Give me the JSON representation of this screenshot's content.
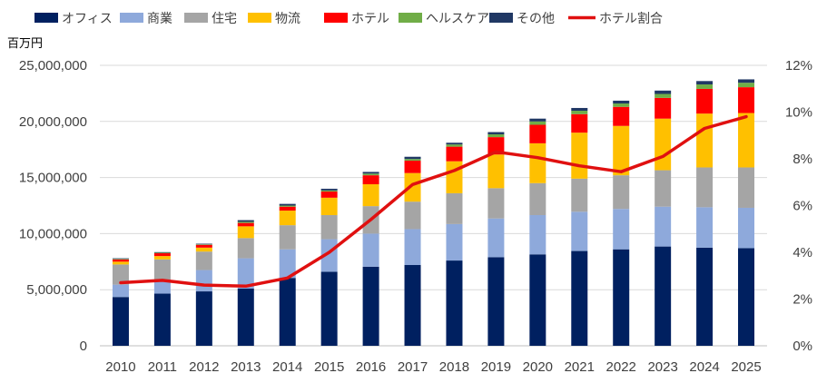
{
  "chart_data": {
    "type": "bar",
    "stacked": true,
    "y_unit_label": "百万円",
    "categories": [
      "2010",
      "2011",
      "2012",
      "2013",
      "2014",
      "2015",
      "2016",
      "2017",
      "2018",
      "2019",
      "2020",
      "2021",
      "2022",
      "2023",
      "2024",
      "2025"
    ],
    "series": [
      {
        "name": "オフィス",
        "color": "#002060",
        "values": [
          4350000,
          4650000,
          4850000,
          5100000,
          6050000,
          6600000,
          7050000,
          7200000,
          7600000,
          7900000,
          8150000,
          8450000,
          8600000,
          8850000,
          8750000,
          8700000
        ]
      },
      {
        "name": "商業",
        "color": "#8EA9DB",
        "values": [
          1100000,
          1200000,
          1900000,
          2700000,
          2550000,
          2900000,
          2950000,
          3200000,
          3250000,
          3450000,
          3500000,
          3500000,
          3600000,
          3550000,
          3600000,
          3600000
        ]
      },
      {
        "name": "住宅",
        "color": "#A5A5A5",
        "values": [
          1800000,
          1850000,
          1650000,
          1800000,
          2150000,
          2150000,
          2450000,
          2450000,
          2750000,
          2700000,
          2850000,
          2950000,
          3000000,
          3250000,
          3550000,
          3600000
        ]
      },
      {
        "name": "物流",
        "color": "#FFC000",
        "values": [
          250000,
          300000,
          350000,
          1050000,
          1300000,
          1550000,
          1950000,
          2550000,
          2850000,
          3000000,
          3550000,
          4100000,
          4400000,
          4600000,
          4800000,
          4850000
        ]
      },
      {
        "name": "ホテル",
        "color": "#FF0000",
        "values": [
          200000,
          250000,
          250000,
          300000,
          350000,
          550000,
          800000,
          1100000,
          1300000,
          1550000,
          1650000,
          1650000,
          1700000,
          1850000,
          2200000,
          2300000
        ]
      },
      {
        "name": "ヘルスケア",
        "color": "#70AD47",
        "values": [
          50000,
          50000,
          50000,
          100000,
          100000,
          100000,
          150000,
          150000,
          200000,
          250000,
          300000,
          300000,
          300000,
          350000,
          400000,
          400000
        ]
      },
      {
        "name": "その他",
        "color": "#203864",
        "values": [
          50000,
          50000,
          50000,
          150000,
          150000,
          150000,
          150000,
          200000,
          150000,
          200000,
          250000,
          250000,
          250000,
          300000,
          300000,
          300000
        ]
      }
    ],
    "line_series": {
      "name": "ホテル割合",
      "color": "#E01010",
      "axis": "right",
      "values": [
        2.7,
        2.8,
        2.6,
        2.55,
        2.9,
        4.0,
        5.4,
        6.9,
        7.5,
        8.3,
        8.05,
        7.7,
        7.45,
        8.1,
        9.3,
        9.8
      ]
    },
    "left_axis": {
      "ylim": [
        0,
        25000000
      ],
      "ticks": [
        "0",
        "5,000,000",
        "10,000,000",
        "15,000,000",
        "20,000,000",
        "25,000,000"
      ]
    },
    "right_axis": {
      "ylim": [
        0,
        12
      ],
      "ticks": [
        "0%",
        "2%",
        "4%",
        "6%",
        "8%",
        "10%",
        "12%"
      ]
    },
    "grid": "horizontal",
    "legend_position": "top"
  }
}
